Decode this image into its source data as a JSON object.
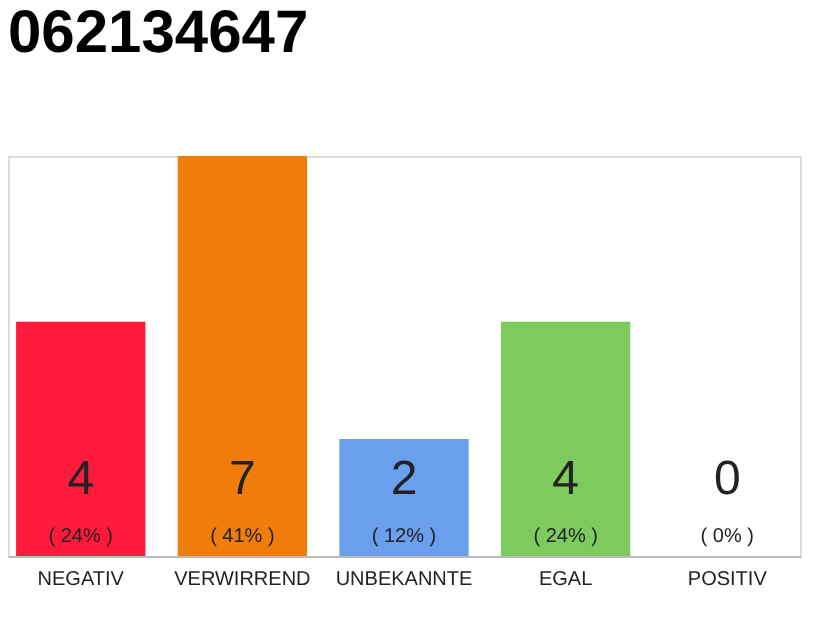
{
  "chart_data": {
    "type": "bar",
    "title": "062134647",
    "categories": [
      "NEGATIV",
      "VERWIRREND",
      "UNBEKANNTE",
      "EGAL",
      "POSITIV"
    ],
    "values": [
      24,
      41,
      12,
      24,
      0
    ],
    "colors": [
      "#ff1a3c",
      "#f07d0a",
      "#6a9fee",
      "#7dcb5c",
      "#cccccc"
    ],
    "value_labels": [
      "( 24% )",
      "( 41% )",
      "( 12% )",
      "( 24% )",
      "( 0% )"
    ],
    "annotations": [
      "4",
      "7",
      "2",
      "4",
      "0"
    ],
    "tick_labels": "x",
    "grid": false,
    "legend": false
  }
}
